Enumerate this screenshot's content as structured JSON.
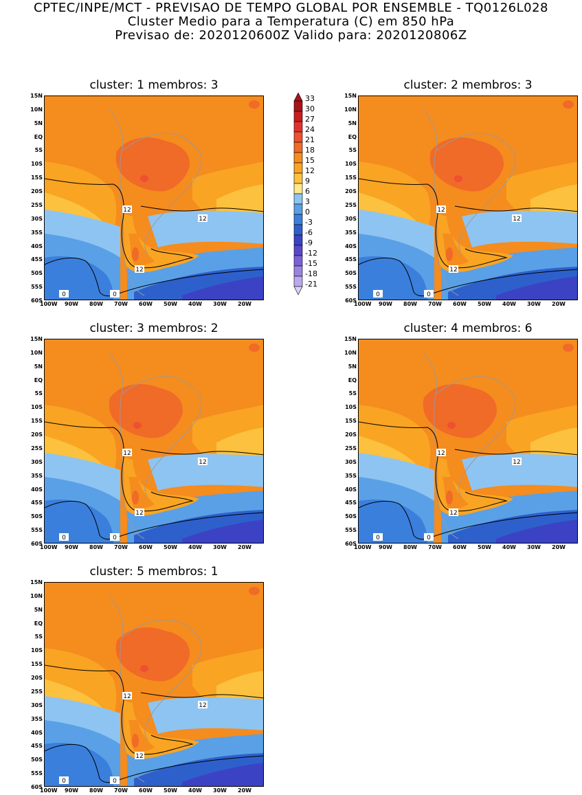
{
  "header": {
    "line1": "CPTEC/INPE/MCT - PREVISAO DE TEMPO GLOBAL POR ENSEMBLE - TQ0126L028",
    "line2": "Cluster Medio para a Temperatura (C) em 850 hPa",
    "line3": "Previsao de: 2020120600Z   Valido para: 2020120806Z"
  },
  "lat_labels": [
    "15N",
    "10N",
    "5N",
    "EQ",
    "5S",
    "10S",
    "15S",
    "20S",
    "25S",
    "30S",
    "35S",
    "40S",
    "45S",
    "50S",
    "55S",
    "60S"
  ],
  "lon_labels": [
    "100W",
    "90W",
    "80W",
    "70W",
    "60W",
    "50W",
    "40W",
    "30W",
    "20W"
  ],
  "colorbar": {
    "labels": [
      "33",
      "30",
      "27",
      "24",
      "21",
      "18",
      "15",
      "12",
      "9",
      "6",
      "3",
      "0",
      "-3",
      "-6",
      "-9",
      "-12",
      "-15",
      "-18",
      "-21"
    ],
    "colors": [
      "#a8141a",
      "#c81e1e",
      "#e0322d",
      "#ee5030",
      "#f06a28",
      "#f58c1e",
      "#f9a423",
      "#fcc13e",
      "#fde88a",
      "#8ec4f2",
      "#5aa0e6",
      "#3b7fdc",
      "#2e60cc",
      "#3b43c4",
      "#5a47c8",
      "#7a62d6",
      "#9a84e2",
      "#bba9ee",
      "#dcd0f6"
    ]
  },
  "contour_labels": {
    "twelve": "12",
    "zero": "0"
  },
  "panels": [
    {
      "title": "cluster: 1   membros: 3"
    },
    {
      "title": "cluster: 2   membros: 3"
    },
    {
      "title": "cluster: 3   membros: 2"
    },
    {
      "title": "cluster: 4   membros: 6"
    },
    {
      "title": "cluster: 5   membros: 1"
    }
  ]
}
